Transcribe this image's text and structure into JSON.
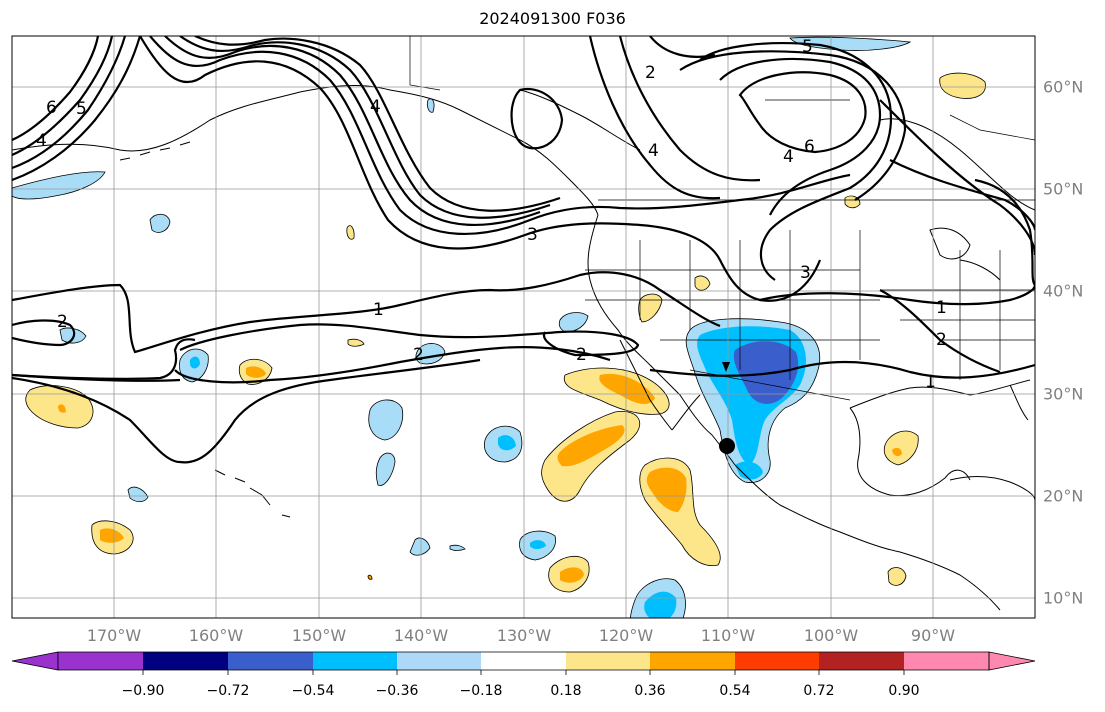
{
  "title": "2024091300 F036",
  "map": {
    "lon_labels": [
      "170°W",
      "160°W",
      "150°W",
      "140°W",
      "130°W",
      "120°W",
      "110°W",
      "100°W",
      "90°W"
    ],
    "lat_labels": [
      "60°N",
      "50°N",
      "40°N",
      "30°N",
      "20°N",
      "10°N"
    ],
    "contour_labels": [
      "6",
      "5",
      "4",
      "4",
      "3",
      "2",
      "1",
      "2",
      "2",
      "2",
      "4",
      "5",
      "6",
      "4",
      "3",
      "1",
      "2",
      "1"
    ],
    "fill_colors": {
      "light_blue": "#a9ddf7",
      "cyan": "#00bfff",
      "royal_blue": "#3a5fcd",
      "light_yellow": "#fde68a",
      "orange": "#ffa500"
    },
    "marker": "black-dot-near-110W-25N"
  },
  "colorbar": {
    "ticks": [
      "−0.90",
      "−0.72",
      "−0.54",
      "−0.36",
      "−0.18",
      "0.18",
      "0.36",
      "0.54",
      "0.72",
      "0.90"
    ],
    "colors": [
      "#9a32cd",
      "#000080",
      "#3a5fcd",
      "#00bfff",
      "#add8f7",
      "#ffffff",
      "#fde68a",
      "#ffa500",
      "#ff3c00",
      "#b22222",
      "#ff88b0"
    ]
  }
}
